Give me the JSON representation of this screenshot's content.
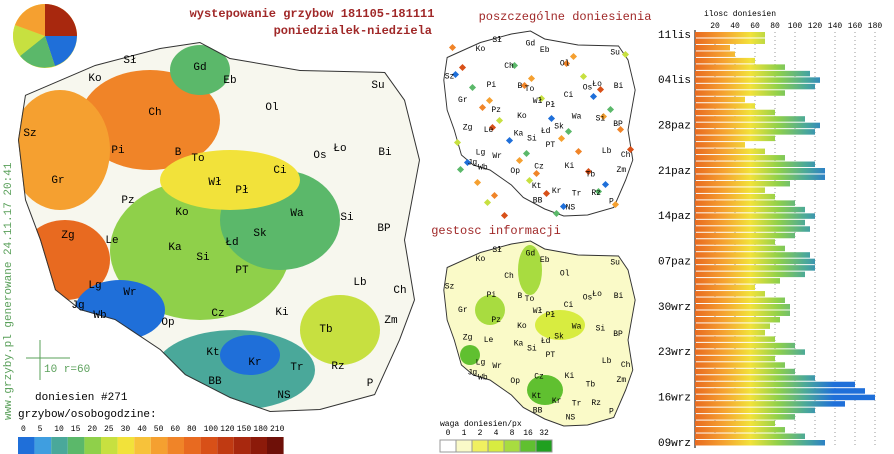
{
  "header": {
    "title": "wystepowanie grzybow 181105-181111",
    "subtitle": "poniedzialek-niedziela",
    "reports_title": "poszczególne doniesienia",
    "density_title": "gestosc informacji",
    "watermark": "www.grzyby.pl generowane 24.11.17 20:41",
    "scale_note": "10 r=60",
    "report_count": "doniesien #271"
  },
  "map": {
    "labels": [
      "Sł",
      "Gd",
      "Eb",
      "Su",
      "Ko",
      "Ch",
      "Ol",
      "Sz",
      "Pi",
      "B",
      "To",
      "Ło",
      "Os",
      "Bi",
      "Gr",
      "Wł",
      "Pł",
      "Ci",
      "Pz",
      "Ko",
      "Wa",
      "Si",
      "Zg",
      "Le",
      "Ka",
      "Łd",
      "Sk",
      "BP",
      "Si",
      "Lg",
      "Wr",
      "PT",
      "Lb",
      "Ch",
      "Jg",
      "Wb",
      "Op",
      "Cz",
      "Ki",
      "Zm",
      "Tb",
      "Kt",
      "Kr",
      "Rz",
      "Tr",
      "BB",
      "NS",
      "P"
    ]
  },
  "legend": {
    "title": "grzybow/osobogodzine:",
    "ticks": [
      0,
      5,
      10,
      15,
      20,
      25,
      30,
      40,
      50,
      60,
      80,
      100,
      120,
      150,
      180,
      210
    ],
    "colors": [
      "#1f6fd9",
      "#3f9ee0",
      "#4aa89a",
      "#5bb86a",
      "#8fd04a",
      "#c7e040",
      "#f2e23a",
      "#f7c23a",
      "#f5a030",
      "#f08428",
      "#e86a20",
      "#d85018",
      "#c03a12",
      "#a8280e",
      "#8c1a0a",
      "#6e1008"
    ]
  },
  "density_legend": {
    "title": "waga doniesien/px",
    "ticks": [
      0,
      1,
      2,
      4,
      8,
      16,
      32
    ],
    "colors": [
      "#ffffff",
      "#fafac8",
      "#f0f060",
      "#d8ec40",
      "#a8dc40",
      "#60c030",
      "#20a020"
    ]
  },
  "chart_data": {
    "type": "bar",
    "x_label": "ilosc doniesien",
    "categories": [
      "09wrz",
      null,
      null,
      null,
      null,
      null,
      null,
      "16wrz",
      null,
      null,
      null,
      null,
      null,
      null,
      "23wrz",
      null,
      null,
      null,
      null,
      null,
      null,
      "30wrz",
      null,
      null,
      null,
      null,
      null,
      null,
      "07paz",
      null,
      null,
      null,
      null,
      null,
      null,
      "14paz",
      null,
      null,
      null,
      null,
      null,
      null,
      "21paz",
      null,
      null,
      null,
      null,
      null,
      null,
      "28paz",
      null,
      null,
      null,
      null,
      null,
      null,
      "04lis",
      null,
      null,
      null,
      null,
      null,
      null,
      "11lis"
    ],
    "values": [
      130,
      110,
      90,
      80,
      100,
      120,
      150,
      180,
      170,
      160,
      120,
      100,
      90,
      80,
      110,
      100,
      80,
      70,
      75,
      85,
      95,
      95,
      90,
      70,
      60,
      85,
      110,
      120,
      120,
      115,
      90,
      80,
      100,
      115,
      110,
      120,
      110,
      100,
      80,
      70,
      95,
      130,
      130,
      120,
      90,
      70,
      50,
      80,
      120,
      125,
      110,
      80,
      60,
      50,
      90,
      120,
      125,
      115,
      90,
      60,
      40,
      35,
      70,
      70
    ],
    "xlim": [
      0,
      180
    ],
    "xticks": [
      20,
      40,
      60,
      80,
      100,
      120,
      140,
      160,
      180
    ],
    "grid": true
  }
}
